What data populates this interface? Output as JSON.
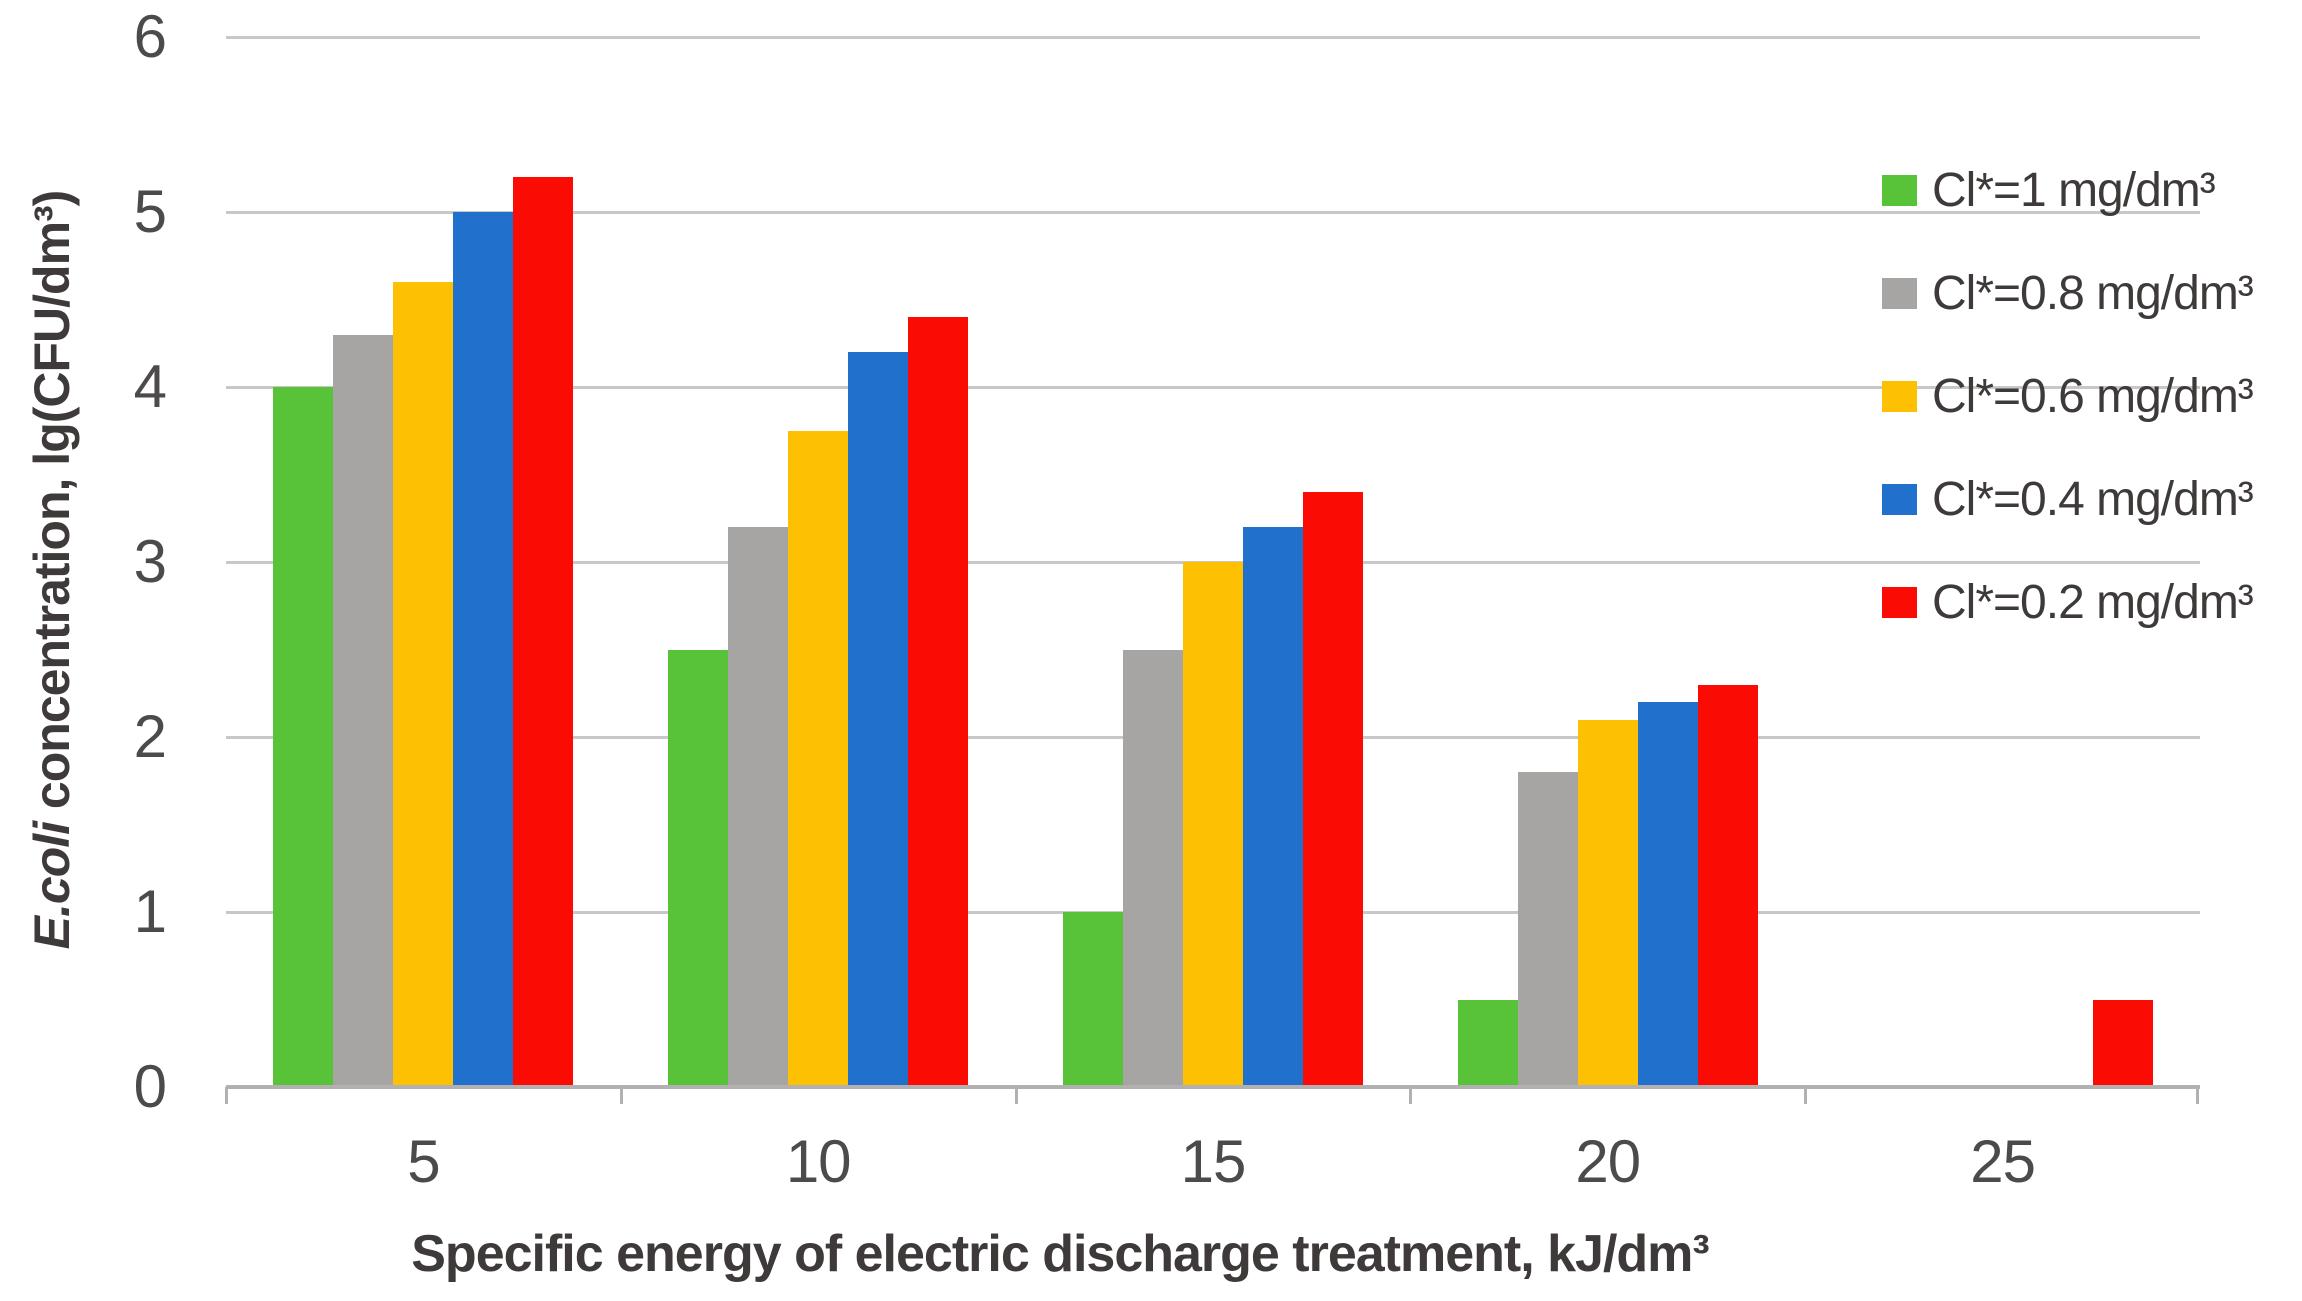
{
  "chart_data": {
    "type": "bar",
    "title": "",
    "categories": [
      "5",
      "10",
      "15",
      "20",
      "25"
    ],
    "series": [
      {
        "name": "Cl*=1 mg/dm³",
        "color": "#58C238",
        "values": [
          4.0,
          2.5,
          1.0,
          0.5,
          0
        ]
      },
      {
        "name": "Cl*=0.8 mg/dm³",
        "color": "#A7A4A4",
        "values": [
          4.3,
          3.2,
          2.5,
          1.8,
          0
        ]
      },
      {
        "name": "Cl*=0.6 mg/dm³",
        "color": "#FEC002",
        "values": [
          4.6,
          3.75,
          3.0,
          2.1,
          0
        ]
      },
      {
        "name": "Cl*=0.4 mg/dm³",
        "color": "#2171CC",
        "values": [
          5.0,
          4.2,
          3.2,
          2.2,
          0
        ]
      },
      {
        "name": "Cl*=0.2 mg/dm³",
        "color": "#FA0B04",
        "values": [
          5.2,
          4.4,
          3.4,
          2.3,
          0.5
        ]
      }
    ],
    "xlabel": "Specific energy of electric discharge treatment, kJ/dm³",
    "ylabel": "E.coli concentration, lg(CFU/dm³)",
    "ylabel_italic_part": "E.coli",
    "ylabel_regular_part": " concentration, lg(CFU/dm³)",
    "ylim": [
      0,
      6
    ],
    "ytick_step": 1,
    "yticks": [
      "0",
      "1",
      "2",
      "3",
      "4",
      "5",
      "6"
    ],
    "grid": true,
    "legend_position": "inside-top-right",
    "style": {
      "grid_color": "#C8C8C8",
      "axis_color": "#B2B0B0",
      "tick_text_color": "#4D4A4A",
      "title_text_color": "#3E3A39",
      "background_color": "#FFFFFF"
    }
  }
}
